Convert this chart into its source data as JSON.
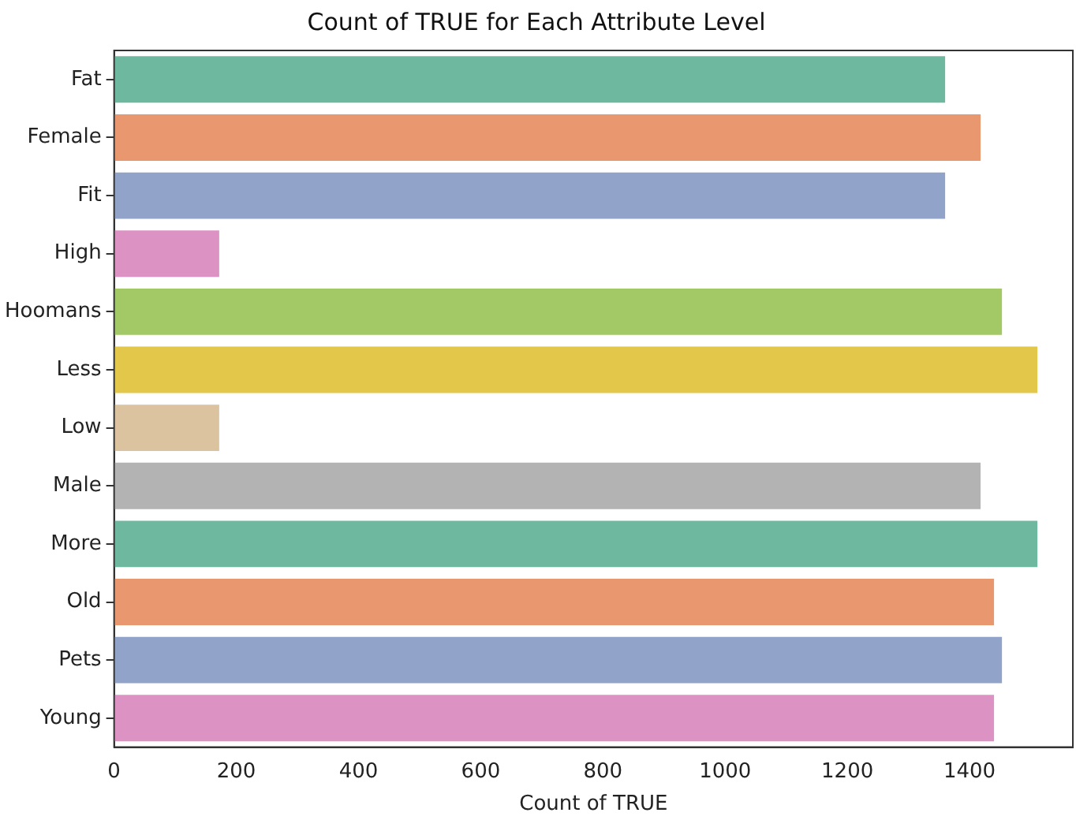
{
  "chart_data": {
    "type": "bar",
    "orientation": "horizontal",
    "title": "Count of TRUE for Each Attribute Level",
    "xlabel": "Count of TRUE",
    "categories": [
      "Fat",
      "Female",
      "Fit",
      "High",
      "Hoomans",
      "Less",
      "Low",
      "Male",
      "More",
      "Old",
      "Pets",
      "Young"
    ],
    "values": [
      1360,
      1418,
      1360,
      172,
      1453,
      1511,
      172,
      1418,
      1511,
      1440,
      1453,
      1440
    ],
    "colors": [
      "#6fb8a0",
      "#e8976f",
      "#91a3c8",
      "#dc93c3",
      "#a3c966",
      "#e3c74a",
      "#dcc3a0",
      "#b3b3b3",
      "#6fb8a0",
      "#e8976f",
      "#91a3c8",
      "#dc93c3"
    ],
    "xlim": [
      0,
      1569
    ],
    "xticks": [
      0,
      200,
      400,
      600,
      800,
      1000,
      1200,
      1400
    ],
    "grid": false,
    "legend": false
  }
}
